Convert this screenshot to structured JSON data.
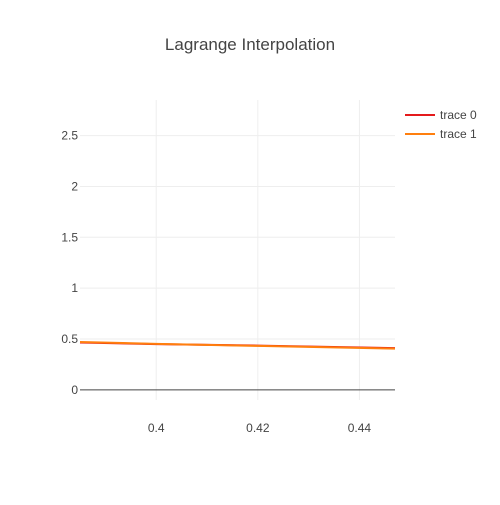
{
  "chart_data": {
    "type": "line",
    "title": "Lagrange Interpolation",
    "xlabel": "",
    "ylabel": "",
    "xlim": [
      0.385,
      0.447
    ],
    "ylim": [
      -0.1,
      2.85
    ],
    "x_ticks": [
      0.4,
      0.42,
      0.44
    ],
    "x_tick_labels": [
      "0.4",
      "0.42",
      "0.44"
    ],
    "y_ticks": [
      0,
      0.5,
      1,
      1.5,
      2,
      2.5
    ],
    "y_tick_labels": [
      "0",
      "0.5",
      "1",
      "1.5",
      "2",
      "2.5"
    ],
    "grid": true,
    "legend_position": "top-right",
    "series": [
      {
        "name": "trace 0",
        "color": "#e41a1c",
        "x": [
          0.385,
          0.4,
          0.42,
          0.447
        ],
        "y": [
          0.465,
          0.45,
          0.435,
          0.41
        ]
      },
      {
        "name": "trace 1",
        "color": "#ff7f0e",
        "x": [
          0.385,
          0.4,
          0.42,
          0.447
        ],
        "y": [
          0.47,
          0.452,
          0.432,
          0.405
        ]
      }
    ]
  }
}
